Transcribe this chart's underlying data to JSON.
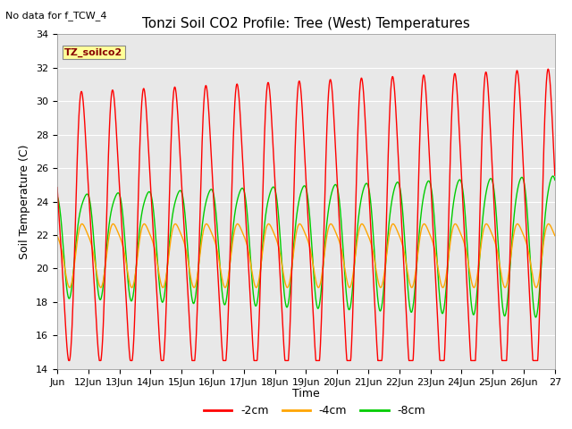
{
  "title": "Tonzi Soil CO2 Profile: Tree (West) Temperatures",
  "subtitle": "No data for f_TCW_4",
  "ylabel": "Soil Temperature (C)",
  "xlabel": "Time",
  "ylim": [
    14,
    34
  ],
  "yticks": [
    14,
    16,
    18,
    20,
    22,
    24,
    26,
    28,
    30,
    32,
    34
  ],
  "x_tick_labels": [
    "Jun",
    "12Jun",
    "13Jun",
    "14Jun",
    "15Jun",
    "16Jun",
    "17Jun",
    "18Jun",
    "19Jun",
    "20Jun",
    "21Jun",
    "22Jun",
    "23Jun",
    "24Jun",
    "25Jun",
    "26Jun",
    "27"
  ],
  "legend_labels": [
    "-2cm",
    "-4cm",
    "-8cm"
  ],
  "legend_colors": [
    "#ff0000",
    "#ffa500",
    "#00cc00"
  ],
  "colors": {
    "cm2": "#ff0000",
    "cm4": "#ffa500",
    "cm8": "#00cc00"
  },
  "bg_color": "#e8e8e8",
  "box_color": "#ffff99",
  "box_label": "TZ_soilco2",
  "title_fontsize": 11,
  "label_fontsize": 9,
  "tick_fontsize": 8
}
